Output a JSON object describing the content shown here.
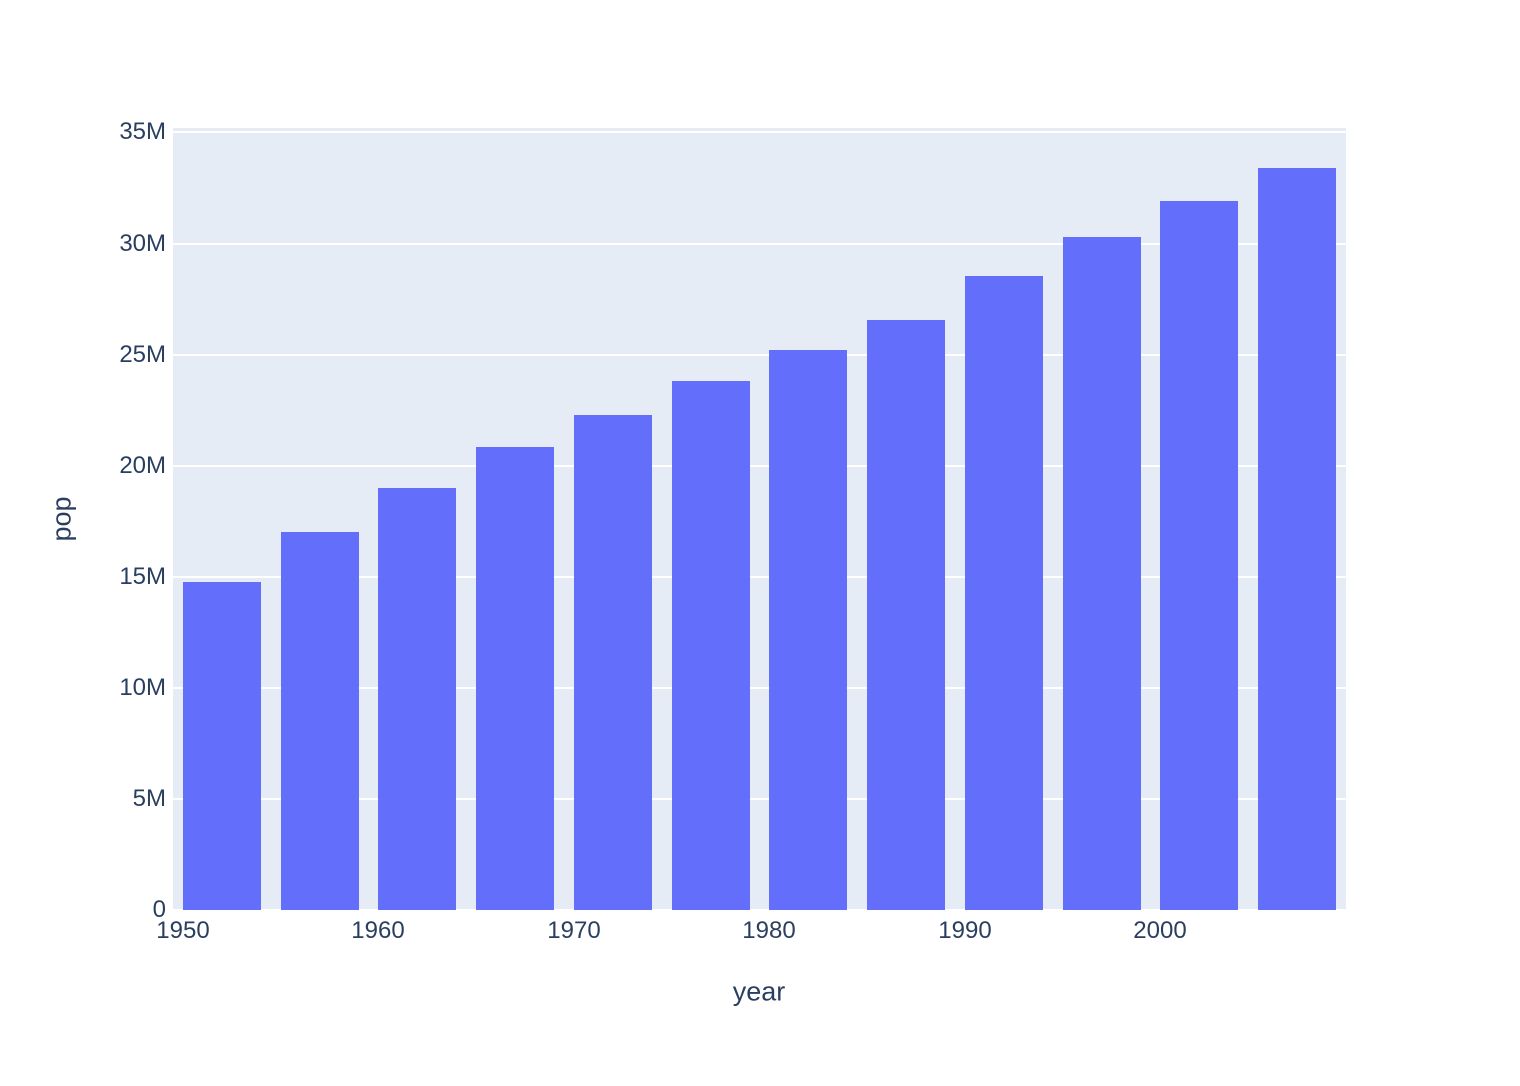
{
  "figure": {
    "paper_background": "#ffffff"
  },
  "chart_data": {
    "type": "bar",
    "title": "",
    "xlabel": "year",
    "ylabel": "pop",
    "x": [
      1952,
      1957,
      1962,
      1967,
      1972,
      1977,
      1982,
      1987,
      1992,
      1997,
      2002,
      2007
    ],
    "values": [
      14785584,
      17010154,
      18985849,
      20819767,
      22284500,
      23796400,
      25201900,
      26549700,
      28523502,
      30305843,
      31902268,
      33390141
    ],
    "series_name": "pop",
    "xlim": [
      1949.5,
      2009.5
    ],
    "ylim": [
      0,
      35200000
    ],
    "xticks": [
      1950,
      1960,
      1970,
      1980,
      1990,
      2000
    ],
    "xtick_labels": [
      "1950",
      "1960",
      "1970",
      "1980",
      "1990",
      "2000"
    ],
    "yticks": [
      0,
      5000000,
      10000000,
      15000000,
      20000000,
      25000000,
      30000000,
      35000000
    ],
    "ytick_labels": [
      "0",
      "5M",
      "10M",
      "15M",
      "20M",
      "25M",
      "30M",
      "35M"
    ],
    "bar_width_years": 4,
    "bar_color": "#636efa",
    "plot_background": "#e5ecf6",
    "grid_color": "#ffffff",
    "text_color": "#2a3f5f",
    "grid": true,
    "legend": "none"
  }
}
